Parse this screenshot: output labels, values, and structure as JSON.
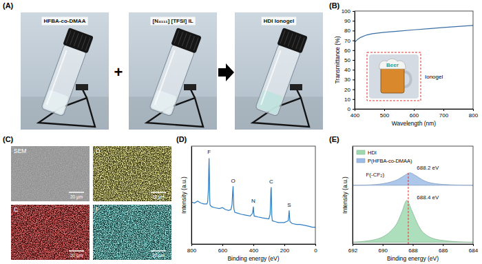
{
  "figure": {
    "panel_a": {
      "label": "(A)",
      "plus": "+",
      "photos": [
        {
          "text": "HFBA-co-DMAA",
          "color": "#e6eff3"
        },
        {
          "text": "[N₄₁₁₁] [TFSI] IL",
          "color": "#e6eff3"
        },
        {
          "text": "HDI Ionogel",
          "color": "#bfe2df"
        }
      ]
    },
    "panel_b_inset": {
      "sign": "Beer",
      "label": "Ionogel"
    },
    "panel_c": {
      "label": "(C)",
      "tiles": [
        {
          "name": "SEM",
          "color": "#8a8a8a",
          "scale_bar": "20 μm"
        },
        {
          "name": "O",
          "color": "#c9c24a",
          "scale_bar": "20 μm"
        },
        {
          "name": "C",
          "color": "#d42a2a",
          "scale_bar": "20 μm"
        },
        {
          "name": "F",
          "color": "#4fd0c8",
          "scale_bar": "20 μm"
        }
      ]
    }
  },
  "chart_data": [
    {
      "type": "line",
      "title": "(B)",
      "x_label": "Wavelength (nm)",
      "y_label": "Transmittance (%)",
      "xlim": [
        400,
        800
      ],
      "xticks": [
        400,
        500,
        600,
        700,
        800
      ],
      "ylim": [
        0,
        100
      ],
      "yticks": [
        0,
        10,
        20,
        30,
        40,
        50,
        60,
        70,
        80,
        90,
        100
      ],
      "grid": false,
      "series": [
        {
          "color": "#3a6ea5",
          "x": [
            400,
            410,
            420,
            440,
            460,
            480,
            500,
            550,
            600,
            650,
            700,
            750,
            800
          ],
          "values": [
            68,
            71,
            73,
            75.5,
            76.8,
            77.6,
            78.2,
            79.5,
            80.8,
            82,
            83.2,
            84.3,
            85.3
          ]
        }
      ]
    },
    {
      "type": "line",
      "title": "(D)",
      "x_label": "Binding energy (eV)",
      "y_label": "Intensity (a.u.)",
      "xlim": [
        800,
        0
      ],
      "xticks": [
        800,
        600,
        400,
        200,
        0
      ],
      "ylim": [
        0,
        105
      ],
      "yticks": [],
      "tick_labels": "x",
      "grid": false,
      "series": [
        {
          "color": "#2e7dc4",
          "x": [
            800,
            780,
            760,
            740,
            720,
            700,
            695,
            690,
            688,
            686,
            684,
            682,
            680,
            670,
            650,
            620,
            600,
            580,
            560,
            545,
            538,
            534,
            531,
            529,
            526,
            520,
            500,
            480,
            450,
            420,
            405,
            402,
            400,
            398,
            395,
            370,
            340,
            300,
            292,
            289,
            287,
            285,
            283,
            281,
            278,
            260,
            240,
            200,
            175,
            171,
            169,
            167,
            164,
            150,
            120,
            100,
            70,
            40,
            20,
            0
          ],
          "values": [
            45,
            44,
            46,
            44,
            43,
            43,
            45,
            60,
            80,
            92,
            75,
            50,
            42,
            40,
            39,
            38,
            39,
            37,
            36,
            37,
            42,
            55,
            62,
            50,
            38,
            34,
            33,
            32,
            31,
            30,
            33,
            38,
            40,
            34,
            30,
            29,
            28,
            27,
            32,
            45,
            58,
            61,
            45,
            30,
            25,
            24,
            23,
            23,
            25,
            32,
            36,
            30,
            24,
            22,
            21,
            21,
            20,
            19,
            18,
            18
          ]
        }
      ],
      "annotations": [
        {
          "text": "F",
          "x": 686,
          "y": 97
        },
        {
          "text": "O",
          "x": 531,
          "y": 66
        },
        {
          "text": "N",
          "x": 400,
          "y": 44
        },
        {
          "text": "C",
          "x": 285,
          "y": 65
        },
        {
          "text": "S",
          "x": 169,
          "y": 40
        }
      ]
    },
    {
      "type": "area",
      "title": "(E)",
      "x_label": "Binding energy (eV)",
      "y_label": "Intensity (a.u.)",
      "xlim": [
        692,
        684
      ],
      "xticks": [
        692,
        690,
        688,
        686,
        684
      ],
      "ylim": [
        0,
        110
      ],
      "yticks": [],
      "tick_labels": "x",
      "grid": false,
      "legend": "upper left",
      "series": [
        {
          "name": "HDI",
          "color": "#9fd9b0",
          "x": [
            692,
            691,
            690.5,
            690,
            689.5,
            689,
            688.7,
            688.4,
            688.1,
            687.8,
            687.5,
            687,
            686.5,
            686,
            685,
            684
          ],
          "values": [
            2,
            3.5,
            5,
            8,
            14,
            25,
            37,
            49,
            39,
            27,
            17,
            9,
            5.5,
            4,
            2.5,
            2
          ]
        },
        {
          "name": "P(HFBA-co-DMAA)",
          "color": "#9dbde6",
          "x": [
            692,
            691,
            690.5,
            690,
            689.5,
            689,
            688.6,
            688.2,
            687.8,
            687.4,
            687,
            686.5,
            686,
            685,
            684
          ],
          "values": [
            66,
            66.3,
            66.8,
            67.8,
            69.5,
            72.5,
            76.5,
            80,
            76.8,
            72.5,
            69.5,
            67.8,
            67,
            66.3,
            66
          ]
        }
      ],
      "reference_line": 688.3,
      "annotations": [
        {
          "text": "F(-CF₂)",
          "x": 690.5,
          "y": 76
        },
        {
          "text": "688.2 eV",
          "x": 687.0,
          "y": 84
        },
        {
          "text": "688.4 eV",
          "x": 687.0,
          "y": 50
        }
      ]
    }
  ]
}
